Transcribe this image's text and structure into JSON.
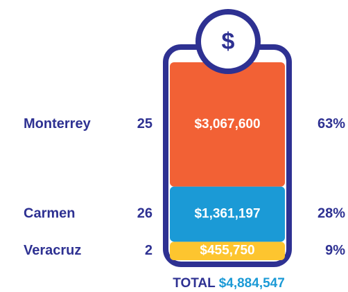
{
  "chart_data": {
    "type": "jar",
    "icon": "$",
    "categories": [
      "Monterrey",
      "Carmen",
      "Veracruz"
    ],
    "counts": [
      25,
      26,
      2
    ],
    "values": [
      3067600,
      1361197,
      455750
    ],
    "value_labels": [
      "$3,067,600",
      "$1,361,197",
      "$455,750"
    ],
    "percents": [
      63,
      28,
      9
    ],
    "percent_labels": [
      "63%",
      "28%",
      "9%"
    ],
    "colors": [
      "#f26135",
      "#1b9ad6",
      "#fdc52f"
    ],
    "total_label": "TOTAL",
    "total": 4884547,
    "total_value_label": "$4,884,547"
  }
}
